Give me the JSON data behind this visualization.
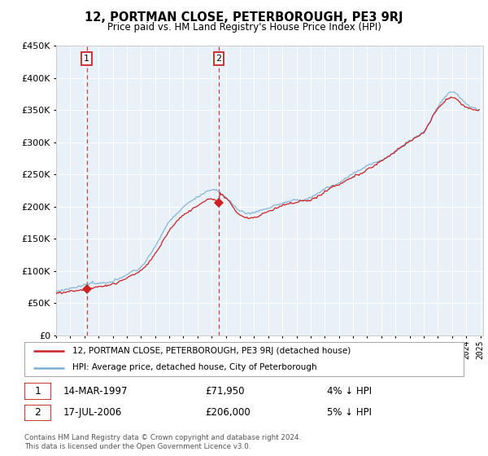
{
  "title": "12, PORTMAN CLOSE, PETERBOROUGH, PE3 9RJ",
  "subtitle": "Price paid vs. HM Land Registry's House Price Index (HPI)",
  "legend_line1": "12, PORTMAN CLOSE, PETERBOROUGH, PE3 9RJ (detached house)",
  "legend_line2": "HPI: Average price, detached house, City of Peterborough",
  "footnote": "Contains HM Land Registry data © Crown copyright and database right 2024.\nThis data is licensed under the Open Government Licence v3.0.",
  "sale1_date": "14-MAR-1997",
  "sale1_price": "£71,950",
  "sale1_hpi": "4% ↓ HPI",
  "sale2_date": "17-JUL-2006",
  "sale2_price": "£206,000",
  "sale2_hpi": "5% ↓ HPI",
  "hpi_color": "#7bafd4",
  "red_color": "#cc2222",
  "bg_color": "#e8f0f8",
  "grid_color": "#ffffff",
  "ylim": [
    0,
    450000
  ],
  "ytick_vals": [
    0,
    50000,
    100000,
    150000,
    200000,
    250000,
    300000,
    350000,
    400000,
    450000
  ],
  "ytick_labels": [
    "£0",
    "£50K",
    "£100K",
    "£150K",
    "£200K",
    "£250K",
    "£300K",
    "£350K",
    "£400K",
    "£450K"
  ]
}
